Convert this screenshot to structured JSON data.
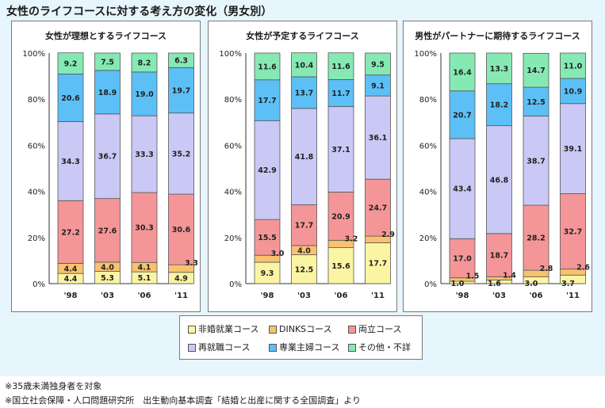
{
  "header": {
    "title": "女性のライフコースに対する考え方の変化（男女別）"
  },
  "colors": {
    "非婚就業コース": "#fbf5a3",
    "DINKSコース": "#f9c26f",
    "両立コース": "#f49697",
    "再就職コース": "#cac8f5",
    "専業主婦コース": "#5cc0f7",
    "その他・不詳": "#86e9b4"
  },
  "chart_data": [
    {
      "type": "bar",
      "stacked": true,
      "title": "女性が理想とするライフコース",
      "categories": [
        "'98",
        "'03",
        "'06",
        "'11"
      ],
      "ytick_labels": [
        "0%",
        "20%",
        "40%",
        "60%",
        "80%",
        "100%"
      ],
      "ylim": [
        0,
        100
      ],
      "series": [
        {
          "name": "非婚就業コース",
          "values": [
            4.4,
            5.3,
            5.1,
            4.9
          ]
        },
        {
          "name": "DINKSコース",
          "values": [
            4.4,
            4.0,
            4.1,
            3.3
          ]
        },
        {
          "name": "両立コース",
          "values": [
            27.2,
            27.6,
            30.3,
            30.6
          ]
        },
        {
          "name": "再就職コース",
          "values": [
            34.3,
            36.7,
            33.3,
            35.2
          ]
        },
        {
          "name": "専業主婦コース",
          "values": [
            20.6,
            18.9,
            19.0,
            19.7
          ]
        },
        {
          "name": "その他・不詳",
          "values": [
            9.2,
            7.5,
            8.2,
            6.3
          ]
        }
      ]
    },
    {
      "type": "bar",
      "stacked": true,
      "title": "女性が予定するライフコース",
      "categories": [
        "'98",
        "'03",
        "'06",
        "'11"
      ],
      "ytick_labels": [
        "0%",
        "20%",
        "40%",
        "60%",
        "80%",
        "100%"
      ],
      "ylim": [
        0,
        100
      ],
      "series": [
        {
          "name": "非婚就業コース",
          "values": [
            9.3,
            12.5,
            15.6,
            17.7
          ]
        },
        {
          "name": "DINKSコース",
          "values": [
            3.0,
            4.0,
            3.2,
            2.9
          ]
        },
        {
          "name": "両立コース",
          "values": [
            15.5,
            17.7,
            20.9,
            24.7
          ]
        },
        {
          "name": "再就職コース",
          "values": [
            42.9,
            41.8,
            37.1,
            36.1
          ]
        },
        {
          "name": "専業主婦コース",
          "values": [
            17.7,
            13.7,
            11.7,
            9.1
          ]
        },
        {
          "name": "その他・不詳",
          "values": [
            11.6,
            10.4,
            11.6,
            9.5
          ]
        }
      ]
    },
    {
      "type": "bar",
      "stacked": true,
      "title": "男性がパートナーに期待するライフコース",
      "categories": [
        "'98",
        "'03",
        "'06",
        "'11"
      ],
      "ytick_labels": [
        "0%",
        "20%",
        "40%",
        "60%",
        "80%",
        "100%"
      ],
      "ylim": [
        0,
        100
      ],
      "series": [
        {
          "name": "非婚就業コース",
          "values": [
            1.0,
            1.6,
            3.0,
            3.7
          ]
        },
        {
          "name": "DINKSコース",
          "values": [
            1.5,
            1.4,
            2.8,
            2.6
          ]
        },
        {
          "name": "両立コース",
          "values": [
            17.0,
            18.7,
            28.2,
            32.7
          ]
        },
        {
          "name": "再就職コース",
          "values": [
            43.4,
            46.8,
            38.7,
            39.1
          ]
        },
        {
          "name": "専業主婦コース",
          "values": [
            20.7,
            18.2,
            12.5,
            10.9
          ]
        },
        {
          "name": "その他・不詳",
          "values": [
            16.4,
            13.3,
            14.7,
            11.0
          ]
        }
      ]
    }
  ],
  "legend": [
    {
      "label": "非婚就業コース",
      "color": "#fbf5a3"
    },
    {
      "label": "DINKSコース",
      "color": "#f9c26f"
    },
    {
      "label": "両立コース",
      "color": "#f49697"
    },
    {
      "label": "再就職コース",
      "color": "#cac8f5"
    },
    {
      "label": "専業主婦コース",
      "color": "#5cc0f7"
    },
    {
      "label": "その他・不詳",
      "color": "#86e9b4"
    }
  ],
  "notes": [
    "※35歳未満独身者を対象",
    "※国立社会保障・人口問題研究所　出生動向基本調査「結婚と出産に関する全国調査」より"
  ]
}
